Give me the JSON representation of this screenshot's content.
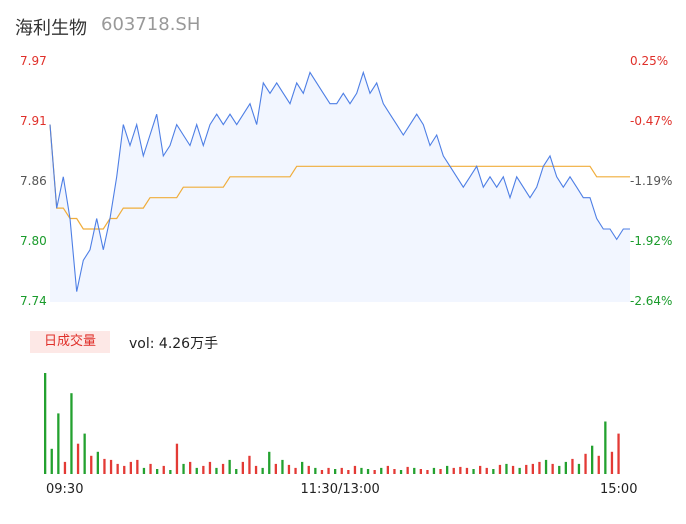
{
  "header": {
    "name": "海利生物",
    "code": "603718.SH"
  },
  "colors": {
    "price_line": "#4e7fe5",
    "avg_line": "#f0ad3b",
    "area_fill": "#f2f6ff",
    "up": "#e0302a",
    "down": "#1a9b2b",
    "flat": "#555555",
    "volume_up": "#e33a35",
    "volume_down": "#23a12f"
  },
  "y_axis_left": [
    {
      "label": "7.97",
      "value": 7.97,
      "trend": "up"
    },
    {
      "label": "7.91",
      "value": 7.91,
      "trend": "up"
    },
    {
      "label": "7.86",
      "value": 7.86,
      "trend": "flat"
    },
    {
      "label": "7.80",
      "value": 7.8,
      "trend": "down"
    },
    {
      "label": "7.74",
      "value": 7.74,
      "trend": "down"
    }
  ],
  "y_axis_right": [
    {
      "label": "0.25%",
      "trend": "up"
    },
    {
      "label": "-0.47%",
      "trend": "up"
    },
    {
      "label": "-1.19%",
      "trend": "flat"
    },
    {
      "label": "-1.92%",
      "trend": "down"
    },
    {
      "label": "-2.64%",
      "trend": "down"
    }
  ],
  "volume": {
    "badge": "日成交量",
    "text": "vol: 4.26万手"
  },
  "time_axis": [
    "09:30",
    "11:30/13:00",
    "15:00"
  ],
  "chart_data": {
    "type": "line",
    "title": "海利生物 603718.SH",
    "ylim": [
      7.74,
      7.97
    ],
    "price": [
      7.91,
      7.83,
      7.86,
      7.82,
      7.75,
      7.78,
      7.79,
      7.82,
      7.79,
      7.82,
      7.86,
      7.91,
      7.89,
      7.91,
      7.88,
      7.9,
      7.92,
      7.88,
      7.89,
      7.91,
      7.9,
      7.89,
      7.91,
      7.89,
      7.91,
      7.92,
      7.91,
      7.92,
      7.91,
      7.92,
      7.93,
      7.91,
      7.95,
      7.94,
      7.95,
      7.94,
      7.93,
      7.95,
      7.94,
      7.96,
      7.95,
      7.94,
      7.93,
      7.93,
      7.94,
      7.93,
      7.94,
      7.96,
      7.94,
      7.95,
      7.93,
      7.92,
      7.91,
      7.9,
      7.91,
      7.92,
      7.91,
      7.89,
      7.9,
      7.88,
      7.87,
      7.86,
      7.85,
      7.86,
      7.87,
      7.85,
      7.86,
      7.85,
      7.86,
      7.84,
      7.86,
      7.85,
      7.84,
      7.85,
      7.87,
      7.88,
      7.86,
      7.85,
      7.86,
      7.85,
      7.84,
      7.84,
      7.82,
      7.81,
      7.81,
      7.8,
      7.81,
      7.81
    ],
    "avg": [
      7.91,
      7.83,
      7.83,
      7.82,
      7.82,
      7.81,
      7.81,
      7.81,
      7.81,
      7.82,
      7.82,
      7.83,
      7.83,
      7.83,
      7.83,
      7.84,
      7.84,
      7.84,
      7.84,
      7.84,
      7.85,
      7.85,
      7.85,
      7.85,
      7.85,
      7.85,
      7.85,
      7.86,
      7.86,
      7.86,
      7.86,
      7.86,
      7.86,
      7.86,
      7.86,
      7.86,
      7.86,
      7.87,
      7.87,
      7.87,
      7.87,
      7.87,
      7.87,
      7.87,
      7.87,
      7.87,
      7.87,
      7.87,
      7.87,
      7.87,
      7.87,
      7.87,
      7.87,
      7.87,
      7.87,
      7.87,
      7.87,
      7.87,
      7.87,
      7.87,
      7.87,
      7.87,
      7.87,
      7.87,
      7.87,
      7.87,
      7.87,
      7.87,
      7.87,
      7.87,
      7.87,
      7.87,
      7.87,
      7.87,
      7.87,
      7.87,
      7.87,
      7.87,
      7.87,
      7.87,
      7.87,
      7.87,
      7.86,
      7.86,
      7.86,
      7.86,
      7.86,
      7.86
    ],
    "volume": [
      100,
      25,
      60,
      12,
      80,
      30,
      40,
      18,
      22,
      15,
      14,
      10,
      8,
      12,
      14,
      6,
      10,
      5,
      8,
      4,
      30,
      10,
      12,
      6,
      8,
      12,
      6,
      10,
      14,
      5,
      12,
      18,
      8,
      6,
      22,
      10,
      14,
      9,
      6,
      12,
      8,
      6,
      4,
      6,
      5,
      6,
      4,
      8,
      6,
      5,
      4,
      6,
      8,
      5,
      4,
      7,
      6,
      5,
      4,
      6,
      5,
      8,
      6,
      7,
      6,
      5,
      8,
      6,
      5,
      9,
      10,
      8,
      6,
      9,
      10,
      12,
      14,
      10,
      8,
      12,
      15,
      10,
      20,
      28,
      18,
      52,
      22,
      40
    ],
    "volume_trend": [
      "d",
      "d",
      "d",
      "u",
      "d",
      "u",
      "d",
      "u",
      "d",
      "u",
      "u",
      "u",
      "u",
      "u",
      "u",
      "d",
      "u",
      "d",
      "u",
      "d",
      "u",
      "d",
      "u",
      "d",
      "u",
      "u",
      "d",
      "u",
      "d",
      "d",
      "u",
      "u",
      "u",
      "d",
      "d",
      "u",
      "d",
      "u",
      "u",
      "d",
      "u",
      "d",
      "u",
      "u",
      "d",
      "u",
      "u",
      "u",
      "d",
      "d",
      "u",
      "d",
      "u",
      "u",
      "d",
      "u",
      "d",
      "u",
      "u",
      "d",
      "u",
      "d",
      "u",
      "u",
      "u",
      "d",
      "u",
      "u",
      "d",
      "u",
      "d",
      "u",
      "d",
      "u",
      "u",
      "u",
      "d",
      "u",
      "d",
      "d",
      "u",
      "d",
      "u",
      "d",
      "u",
      "d",
      "u",
      "u"
    ],
    "volume_ylim": [
      0,
      105
    ]
  }
}
